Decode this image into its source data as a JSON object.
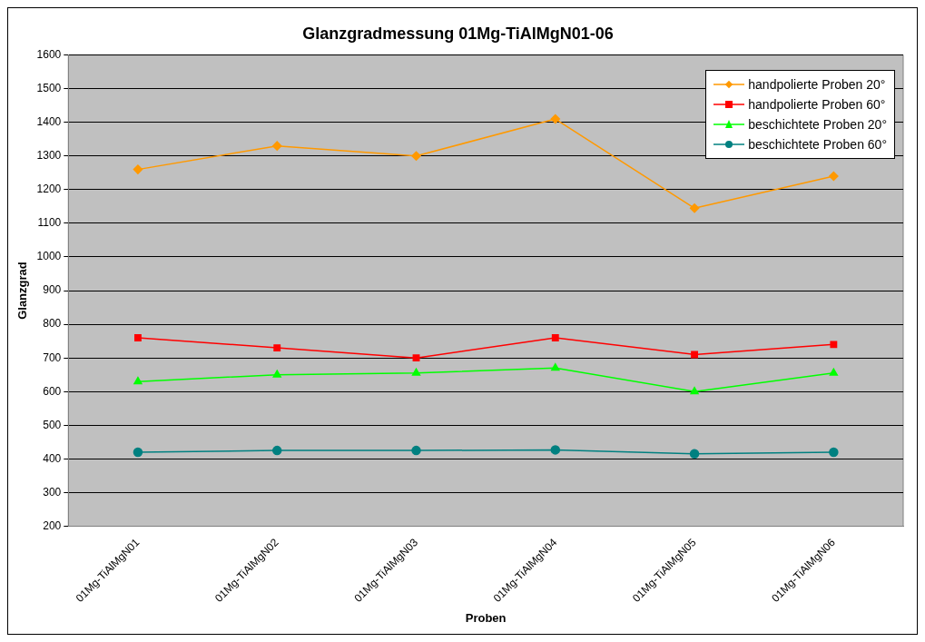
{
  "chart_data": {
    "type": "line",
    "title": "Glanzgradmessung 01Mg-TiAlMgN01-06",
    "xlabel": "Proben",
    "ylabel": "Glanzgrad",
    "categories": [
      "01Mg-TiAlMgN01",
      "01Mg-TiAlMgN02",
      "01Mg-TiAlMgN03",
      "01Mg-TiAlMgN04",
      "01Mg-TiAlMgN05",
      "01Mg-TiAlMgN06"
    ],
    "series": [
      {
        "name": "handpolierte Proben 20°",
        "color": "#ff9900",
        "marker": "diamond",
        "values": [
          1260,
          1330,
          1300,
          1410,
          1145,
          1240
        ]
      },
      {
        "name": "handpolierte Proben 60°",
        "color": "#ff0000",
        "marker": "square",
        "values": [
          760,
          730,
          700,
          760,
          710,
          740
        ]
      },
      {
        "name": "beschichtete Proben 20°",
        "color": "#00ff00",
        "marker": "triangle",
        "values": [
          630,
          650,
          655,
          670,
          600,
          655
        ]
      },
      {
        "name": "beschichtete Proben 60°",
        "color": "#008080",
        "marker": "circle",
        "values": [
          420,
          425,
          425,
          427,
          415,
          420
        ]
      }
    ],
    "ylim": [
      200,
      1600
    ],
    "yticks": [
      200,
      300,
      400,
      500,
      600,
      700,
      800,
      900,
      1000,
      1100,
      1200,
      1300,
      1400,
      1500,
      1600
    ],
    "grid": "y",
    "legend": "top right",
    "line_style": "solid"
  }
}
